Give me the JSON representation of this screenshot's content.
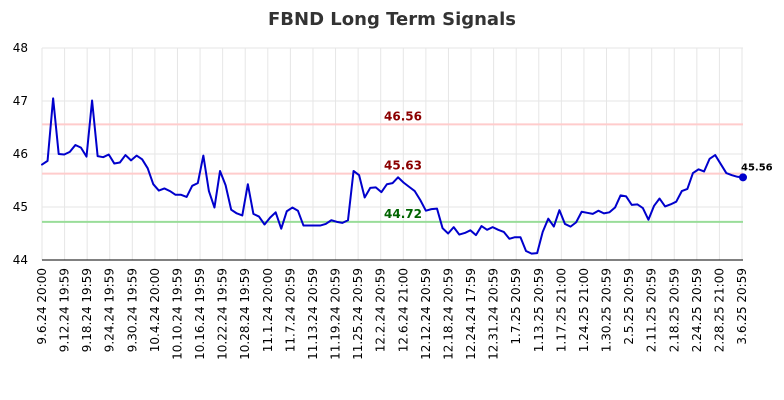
{
  "chart_data": {
    "type": "line",
    "title": "FBND Long Term Signals",
    "xlabel": "",
    "ylabel": "",
    "ylim": [
      44,
      48
    ],
    "yticks": [
      "44",
      "45",
      "46",
      "47",
      "48"
    ],
    "x_tick_labels": [
      "9.6.24 20:00",
      "9.12.24 19:59",
      "9.18.24 19:59",
      "9.24.24 19:59",
      "9.30.24 19:59",
      "10.4.24 20:00",
      "10.10.24 19:59",
      "10.16.24 19:59",
      "10.22.24 19:59",
      "10.28.24 19:59",
      "11.1.24 20:00",
      "11.7.24 20:59",
      "11.13.24 20:59",
      "11.19.24 20:59",
      "11.25.24 20:59",
      "12.2.24 20:59",
      "12.6.24 21:00",
      "12.12.24 20:59",
      "12.18.24 20:59",
      "12.24.24 17:59",
      "12.31.24 20:59",
      "1.7.25 20:59",
      "1.13.25 20:59",
      "1.17.25 21:00",
      "1.24.25 21:00",
      "1.30.25 20:59",
      "2.5.25 20:59",
      "2.11.25 20:59",
      "2.18.25 20:59",
      "2.24.25 20:59",
      "2.28.25 21:00",
      "3.6.25 20:59"
    ],
    "grid": true,
    "series": [
      {
        "color": "#0000cc",
        "values": [
          45.8,
          45.87,
          47.05,
          46.0,
          45.99,
          46.04,
          46.17,
          46.12,
          45.95,
          47.01,
          45.96,
          45.94,
          45.99,
          45.82,
          45.84,
          45.98,
          45.88,
          45.97,
          45.9,
          45.73,
          45.43,
          45.31,
          45.35,
          45.3,
          45.23,
          45.23,
          45.19,
          45.4,
          45.45,
          45.97,
          45.3,
          44.99,
          45.68,
          45.41,
          44.95,
          44.88,
          44.84,
          45.43,
          44.87,
          44.82,
          44.67,
          44.8,
          44.9,
          44.59,
          44.92,
          44.99,
          44.93,
          44.65,
          44.65,
          44.65,
          44.65,
          44.68,
          44.75,
          44.72,
          44.7,
          44.75,
          45.68,
          45.6,
          45.18,
          45.36,
          45.37,
          45.28,
          45.43,
          45.45,
          45.56,
          45.46,
          45.38,
          45.3,
          45.13,
          44.93,
          44.96,
          44.97,
          44.6,
          44.5,
          44.62,
          44.48,
          44.51,
          44.56,
          44.47,
          44.64,
          44.57,
          44.62,
          44.57,
          44.53,
          44.4,
          44.43,
          44.43,
          44.17,
          44.12,
          44.13,
          44.53,
          44.78,
          44.63,
          44.94,
          44.68,
          44.63,
          44.71,
          44.91,
          44.89,
          44.87,
          44.93,
          44.88,
          44.9,
          44.99,
          45.22,
          45.2,
          45.04,
          45.05,
          44.98,
          44.76,
          45.02,
          45.16,
          45.01,
          45.05,
          45.1,
          45.3,
          45.34,
          45.64,
          45.71,
          45.67,
          45.91,
          45.98,
          45.81,
          45.64,
          45.6,
          45.57,
          45.56
        ]
      }
    ],
    "levels": [
      {
        "value": 46.56,
        "label": "46.56",
        "line_color": "#ffcccc",
        "label_color": "#8b0000"
      },
      {
        "value": 45.63,
        "label": "45.63",
        "line_color": "#ffcccc",
        "label_color": "#8b0000"
      },
      {
        "value": 44.72,
        "label": "44.72",
        "line_color": "#99dd99",
        "label_color": "#006400"
      }
    ],
    "last_value_label": "45.56"
  }
}
